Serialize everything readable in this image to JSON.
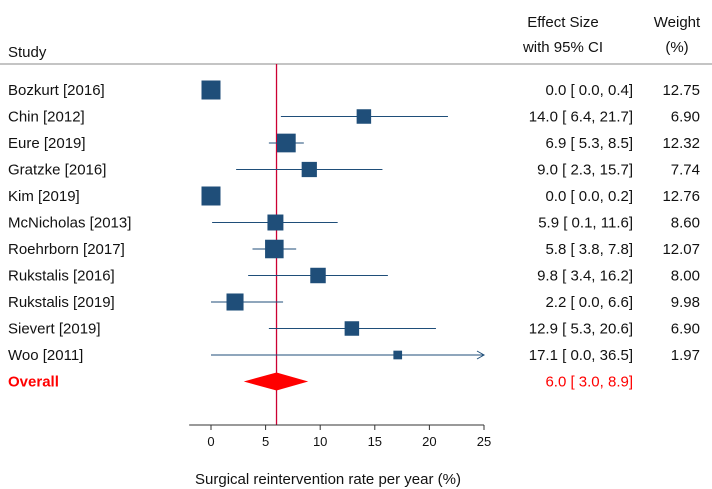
{
  "chart_data": {
    "type": "forest",
    "headers": {
      "study": "Study",
      "effect_line1": "Effect Size",
      "effect_line2": "with 95% CI",
      "weight_line1": "Weight",
      "weight_line2": "(%)"
    },
    "xlabel": "Surgical reintervention rate per year (%)",
    "xlim": [
      -2,
      25
    ],
    "xticks": [
      0,
      5,
      10,
      15,
      20,
      25
    ],
    "reference_line": 6.0,
    "studies": [
      {
        "name": "Bozkurt [2016]",
        "est": 0.0,
        "lo": 0.0,
        "hi": 0.4,
        "weight": 12.75,
        "effect_text": "0.0 [ 0.0,   0.4]",
        "weight_text": "12.75"
      },
      {
        "name": "Chin [2012]",
        "est": 14.0,
        "lo": 6.4,
        "hi": 21.7,
        "weight": 6.9,
        "effect_text": "14.0 [ 6.4, 21.7]",
        "weight_text": "6.90"
      },
      {
        "name": "Eure [2019]",
        "est": 6.9,
        "lo": 5.3,
        "hi": 8.5,
        "weight": 12.32,
        "effect_text": "6.9 [ 5.3,   8.5]",
        "weight_text": "12.32"
      },
      {
        "name": "Gratzke [2016]",
        "est": 9.0,
        "lo": 2.3,
        "hi": 15.7,
        "weight": 7.74,
        "effect_text": "9.0 [ 2.3, 15.7]",
        "weight_text": "7.74"
      },
      {
        "name": "Kim [2019]",
        "est": 0.0,
        "lo": 0.0,
        "hi": 0.2,
        "weight": 12.76,
        "effect_text": "0.0 [ 0.0,   0.2]",
        "weight_text": "12.76"
      },
      {
        "name": "McNicholas [2013]",
        "est": 5.9,
        "lo": 0.1,
        "hi": 11.6,
        "weight": 8.6,
        "effect_text": "5.9 [ 0.1, 11.6]",
        "weight_text": "8.60"
      },
      {
        "name": "Roehrborn [2017]",
        "est": 5.8,
        "lo": 3.8,
        "hi": 7.8,
        "weight": 12.07,
        "effect_text": "5.8 [ 3.8,   7.8]",
        "weight_text": "12.07"
      },
      {
        "name": "Rukstalis [2016]",
        "est": 9.8,
        "lo": 3.4,
        "hi": 16.2,
        "weight": 8.0,
        "effect_text": "9.8 [ 3.4, 16.2]",
        "weight_text": "8.00"
      },
      {
        "name": "Rukstalis [2019]",
        "est": 2.2,
        "lo": 0.0,
        "hi": 6.6,
        "weight": 9.98,
        "effect_text": "2.2 [ 0.0,   6.6]",
        "weight_text": "9.98"
      },
      {
        "name": "Sievert [2019]",
        "est": 12.9,
        "lo": 5.3,
        "hi": 20.6,
        "weight": 6.9,
        "effect_text": "12.9 [ 5.3, 20.6]",
        "weight_text": "6.90"
      },
      {
        "name": "Woo [2011]",
        "est": 17.1,
        "lo": 0.0,
        "hi": 36.5,
        "weight": 1.97,
        "effect_text": "17.1 [ 0.0, 36.5]",
        "weight_text": "1.97"
      }
    ],
    "overall": {
      "name": "Overall",
      "est": 6.0,
      "lo": 3.0,
      "hi": 8.9,
      "effect_text": "6.0 [ 3.0,   8.9]"
    },
    "colors": {
      "marker": "#1f4e79",
      "ci_line": "#1f4e79",
      "overall": "#ff0000",
      "reference_line": "#cc0033",
      "text": "#111111"
    }
  }
}
